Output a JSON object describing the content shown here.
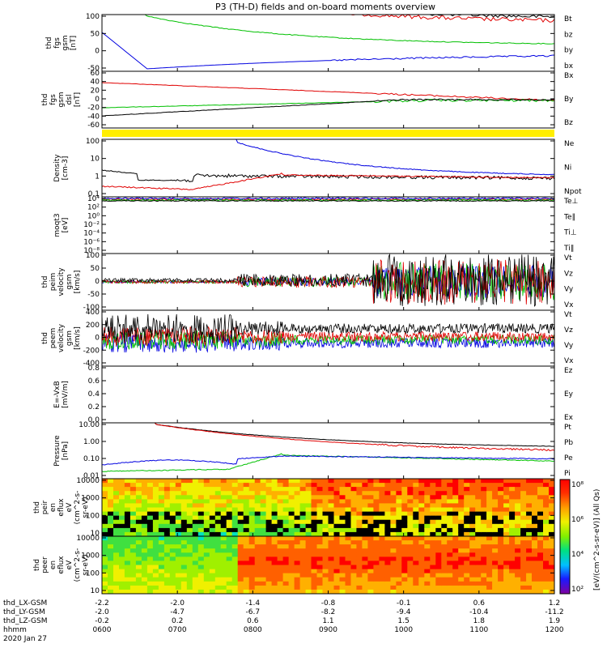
{
  "title": "P3 (TH-D) fields and on-board moments overview",
  "chart_data": {
    "type": "line",
    "time_axis": {
      "rows": [
        {
          "label": "thd_LX-GSM",
          "values": [
            "-2.2",
            "-2.0",
            "-1.4",
            "-0.8",
            "-0.1",
            "0.6",
            "1.2"
          ]
        },
        {
          "label": "thd_LY-GSM",
          "values": [
            "-2.0",
            "-4.7",
            "-6.7",
            "-8.2",
            "-9.4",
            "-10.4",
            "-11.2"
          ]
        },
        {
          "label": "thd_LZ-GSM",
          "values": [
            "-0.2",
            "0.2",
            "0.6",
            "1.1",
            "1.5",
            "1.8",
            "1.9"
          ]
        },
        {
          "label": "hhmm",
          "values": [
            "0600",
            "0700",
            "0800",
            "0900",
            "1000",
            "1100",
            "1200"
          ]
        }
      ],
      "date": "2020 Jan 27"
    },
    "panels": [
      {
        "id": "fgs-gsm",
        "ylabel": [
          "thd",
          "fgs",
          "gsm",
          "[nT]"
        ],
        "yticks": [
          "100",
          "50",
          "0",
          "-50"
        ],
        "legend": [
          {
            "name": "Bt",
            "color": "#000000"
          },
          {
            "name": "bz",
            "color": "#e00000"
          },
          {
            "name": "by",
            "color": "#00c000"
          },
          {
            "name": "bx",
            "color": "#0000e0"
          }
        ]
      },
      {
        "id": "fgs-gsm-dsl",
        "ylabel": [
          "thd",
          "fgs",
          "gsm",
          "dsl",
          "[nT]"
        ],
        "yticks": [
          "60",
          "40",
          "20",
          "0",
          "-20",
          "-40",
          "-60"
        ],
        "legend": [
          {
            "name": "Bx",
            "color": "#000000"
          },
          {
            "name": "By",
            "color": "#00c000"
          },
          {
            "name": "Bz",
            "color": "#e00000"
          }
        ]
      },
      {
        "id": "density",
        "ylabel": [
          "Density",
          "[cm-3]"
        ],
        "yticks": [
          "100",
          "10",
          "1",
          "0.1"
        ],
        "legend": [
          {
            "name": "Ne",
            "color": "#e00000"
          },
          {
            "name": "Ni",
            "color": "#000000"
          },
          {
            "name": "Npot",
            "color": "#0000e0"
          }
        ]
      },
      {
        "id": "temperature",
        "ylabel": [
          "moqt3",
          "[eV]"
        ],
        "yticks": [
          "10⁴",
          "10²",
          "10⁰",
          "10⁻²",
          "10⁻⁴",
          "10⁻⁶",
          "10⁻⁸"
        ],
        "legend": [
          {
            "name": "Te⊥",
            "color": "#e00000"
          },
          {
            "name": "Te∥",
            "color": "#000000"
          },
          {
            "name": "Ti⊥",
            "color": "#0000e0"
          },
          {
            "name": "Ti∥",
            "color": "#00c000"
          }
        ]
      },
      {
        "id": "peim-velocity",
        "ylabel": [
          "thd",
          "peim",
          "velocity",
          "gsm",
          "[km/s]"
        ],
        "yticks": [
          "100",
          "50",
          "0",
          "-50",
          "-100"
        ],
        "legend": [
          {
            "name": "Vt",
            "color": "#000000"
          },
          {
            "name": "Vz",
            "color": "#e00000"
          },
          {
            "name": "Vy",
            "color": "#00c000"
          },
          {
            "name": "Vx",
            "color": "#0000e0"
          }
        ]
      },
      {
        "id": "peem-velocity",
        "ylabel": [
          "thd",
          "peem",
          "velocity",
          "gsm",
          "[km/s]"
        ],
        "yticks": [
          "400",
          "200",
          "0",
          "-200",
          "-400"
        ],
        "legend": [
          {
            "name": "Vt",
            "color": "#000000"
          },
          {
            "name": "Vz",
            "color": "#e00000"
          },
          {
            "name": "Vy",
            "color": "#00c000"
          },
          {
            "name": "Vx",
            "color": "#0000e0"
          }
        ]
      },
      {
        "id": "efield",
        "ylabel": [
          "E=-VxB",
          "[mV/m]"
        ],
        "yticks": [
          "0.8",
          "0.6",
          "0.4",
          "0.2",
          "0.0"
        ],
        "legend": [
          {
            "name": "Ez",
            "color": "#e00000"
          },
          {
            "name": "Ey",
            "color": "#00c000"
          },
          {
            "name": "Ex",
            "color": "#0000e0"
          }
        ]
      },
      {
        "id": "pressure",
        "ylabel": [
          "Pressure",
          "[nPa]"
        ],
        "yticks": [
          "10.00",
          "1.00",
          "0.10",
          "0.01"
        ],
        "legend": [
          {
            "name": "Pt",
            "color": "#000000"
          },
          {
            "name": "Pb",
            "color": "#e00000"
          },
          {
            "name": "Pe",
            "color": "#00c000"
          },
          {
            "name": "Pi",
            "color": "#0000e0"
          }
        ]
      },
      {
        "id": "peir-spec",
        "type": "heatmap",
        "ylabel": [
          "thd",
          "peir",
          "en",
          "eflux",
          "eV",
          "(cm^2-s-",
          "sr-eV)"
        ],
        "yticks": [
          "10000",
          "1000",
          "100",
          "10"
        ]
      },
      {
        "id": "peer-spec",
        "type": "heatmap",
        "ylabel": [
          "thd",
          "peer",
          "en",
          "eflux",
          "eV",
          "(cm^2-s-",
          "sr-eV)"
        ],
        "yticks": [
          "10000",
          "1000",
          "100",
          "10"
        ]
      }
    ],
    "colorbar": {
      "label": "[eV/(cm^2-s-sr-eV)] (All Qs)",
      "ticks": [
        "10⁸",
        "10⁶",
        "10⁴",
        "10²"
      ]
    }
  }
}
